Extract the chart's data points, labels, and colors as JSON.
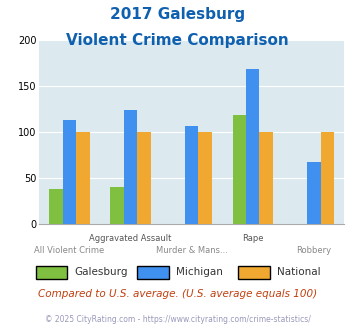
{
  "title_line1": "2017 Galesburg",
  "title_line2": "Violent Crime Comparison",
  "cat_labels_top": [
    "",
    "Aggravated Assault",
    "",
    "Rape",
    ""
  ],
  "cat_labels_bot": [
    "All Violent Crime",
    "",
    "Murder & Mans...",
    "",
    "Robbery"
  ],
  "series": {
    "Galesburg": [
      38,
      40,
      0,
      118,
      0
    ],
    "Michigan": [
      113,
      124,
      107,
      168,
      67
    ],
    "National": [
      100,
      100,
      100,
      100,
      100
    ]
  },
  "colors": {
    "Galesburg": "#80c040",
    "Michigan": "#4090f0",
    "National": "#f0a830"
  },
  "ylim": [
    0,
    200
  ],
  "yticks": [
    0,
    50,
    100,
    150,
    200
  ],
  "plot_bg": "#dce9ef",
  "title_color": "#1060b0",
  "footer_text": "Compared to U.S. average. (U.S. average equals 100)",
  "footer_color": "#c04010",
  "copyright_text": "© 2025 CityRating.com - https://www.cityrating.com/crime-statistics/",
  "copyright_color": "#9999bb"
}
